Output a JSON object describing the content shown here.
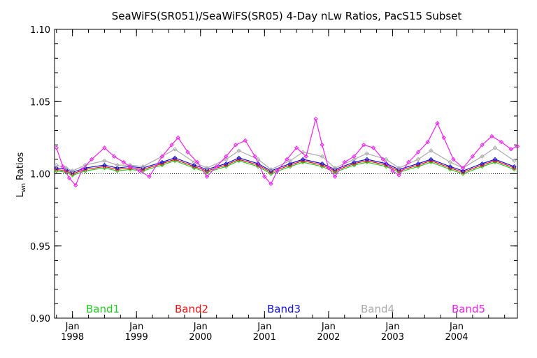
{
  "chart_data": {
    "type": "line",
    "title": "SeaWiFS(SR051)/SeaWiFS(SR05) 4-Day nLw Ratios, PacS15 Subset",
    "ylabel_main": "L",
    "ylabel_sub": "wn",
    "ylabel_rest": " Ratios",
    "xlabel": "",
    "ylim": [
      0.9,
      1.1
    ],
    "xlim": [
      1997.72,
      2004.95
    ],
    "y_ticks": [
      "0.90",
      "0.95",
      "1.00",
      "1.05",
      "1.10"
    ],
    "y_tick_values": [
      0.9,
      0.95,
      1.0,
      1.05,
      1.1
    ],
    "x_ticks": [
      {
        "month": "Jan",
        "year": "1998",
        "value": 1998.0
      },
      {
        "month": "Jan",
        "year": "1999",
        "value": 1999.0
      },
      {
        "month": "Jan",
        "year": "2000",
        "value": 2000.0
      },
      {
        "month": "Jan",
        "year": "2001",
        "value": 2001.0
      },
      {
        "month": "Jan",
        "year": "2002",
        "value": 2002.0
      },
      {
        "month": "Jan",
        "year": "2003",
        "value": 2003.0
      },
      {
        "month": "Jan",
        "year": "2004",
        "value": 2004.0
      }
    ],
    "reference_line": 1.0,
    "series": [
      {
        "name": "Band1",
        "color": "#22cc22",
        "x": [
          1997.75,
          1997.9,
          1998.0,
          1998.2,
          1998.5,
          1998.7,
          1998.9,
          1999.1,
          1999.4,
          1999.6,
          1999.9,
          2000.1,
          2000.4,
          2000.6,
          2000.9,
          2001.1,
          2001.4,
          2001.6,
          2001.9,
          2002.1,
          2002.4,
          2002.6,
          2002.9,
          2003.1,
          2003.4,
          2003.6,
          2003.9,
          2004.1,
          2004.4,
          2004.6,
          2004.9
        ],
        "values": [
          1.002,
          1.001,
          0.999,
          1.002,
          1.004,
          1.002,
          1.003,
          1.002,
          1.006,
          1.009,
          1.004,
          1.001,
          1.005,
          1.009,
          1.005,
          1.0,
          1.005,
          1.008,
          1.005,
          1.001,
          1.006,
          1.008,
          1.005,
          1.001,
          1.005,
          1.008,
          1.003,
          1.0,
          1.005,
          1.008,
          1.003
        ]
      },
      {
        "name": "Band2",
        "color": "#ee1111",
        "x": [
          1997.75,
          1997.9,
          1998.0,
          1998.2,
          1998.5,
          1998.7,
          1998.9,
          1999.1,
          1999.4,
          1999.6,
          1999.9,
          2000.1,
          2000.4,
          2000.6,
          2000.9,
          2001.1,
          2001.4,
          2001.6,
          2001.9,
          2002.1,
          2002.4,
          2002.6,
          2002.9,
          2003.1,
          2003.4,
          2003.6,
          2003.9,
          2004.1,
          2004.4,
          2004.6,
          2004.9
        ],
        "values": [
          1.003,
          1.002,
          1.0,
          1.003,
          1.005,
          1.003,
          1.004,
          1.003,
          1.007,
          1.01,
          1.005,
          1.002,
          1.006,
          1.01,
          1.006,
          1.001,
          1.006,
          1.009,
          1.006,
          1.002,
          1.007,
          1.009,
          1.006,
          1.002,
          1.006,
          1.009,
          1.004,
          1.001,
          1.006,
          1.009,
          1.004
        ]
      },
      {
        "name": "Band3",
        "color": "#1111dd",
        "x": [
          1997.75,
          1997.9,
          1998.0,
          1998.2,
          1998.5,
          1998.7,
          1998.9,
          1999.1,
          1999.4,
          1999.6,
          1999.9,
          2000.1,
          2000.4,
          2000.6,
          2000.9,
          2001.1,
          2001.4,
          2001.6,
          2001.9,
          2002.1,
          2002.4,
          2002.6,
          2002.9,
          2003.1,
          2003.4,
          2003.6,
          2003.9,
          2004.1,
          2004.4,
          2004.6,
          2004.9
        ],
        "values": [
          1.004,
          1.003,
          1.001,
          1.004,
          1.006,
          1.004,
          1.005,
          1.004,
          1.008,
          1.011,
          1.006,
          1.003,
          1.007,
          1.011,
          1.007,
          1.002,
          1.007,
          1.01,
          1.007,
          1.003,
          1.008,
          1.01,
          1.007,
          1.003,
          1.007,
          1.01,
          1.005,
          1.002,
          1.007,
          1.01,
          1.005
        ]
      },
      {
        "name": "Band4",
        "color": "#aaaaaa",
        "x": [
          1997.75,
          1997.9,
          1998.0,
          1998.2,
          1998.5,
          1998.7,
          1998.9,
          1999.1,
          1999.4,
          1999.6,
          1999.9,
          2000.1,
          2000.4,
          2000.6,
          2000.9,
          2001.1,
          2001.4,
          2001.6,
          2001.9,
          2002.1,
          2002.4,
          2002.6,
          2002.9,
          2003.1,
          2003.4,
          2003.6,
          2003.9,
          2004.1,
          2004.4,
          2004.6,
          2004.9
        ],
        "values": [
          1.006,
          1.004,
          1.002,
          1.006,
          1.009,
          1.006,
          1.006,
          1.005,
          1.012,
          1.017,
          1.008,
          1.004,
          1.01,
          1.016,
          1.01,
          1.003,
          1.009,
          1.015,
          1.012,
          1.004,
          1.01,
          1.014,
          1.01,
          1.004,
          1.01,
          1.016,
          1.008,
          1.004,
          1.012,
          1.018,
          1.009
        ]
      },
      {
        "name": "Band5",
        "color": "#ee22ee",
        "x": [
          1997.75,
          1997.85,
          1997.95,
          1998.05,
          1998.15,
          1998.3,
          1998.5,
          1998.65,
          1998.8,
          1998.9,
          1999.05,
          1999.2,
          1999.4,
          1999.55,
          1999.65,
          1999.8,
          1999.95,
          2000.1,
          2000.25,
          2000.4,
          2000.55,
          2000.7,
          2000.85,
          2001.0,
          2001.1,
          2001.2,
          2001.35,
          2001.5,
          2001.65,
          2001.8,
          2001.9,
          2002.0,
          2002.1,
          2002.25,
          2002.4,
          2002.55,
          2002.7,
          2002.85,
          2003.0,
          2003.1,
          2003.25,
          2003.4,
          2003.55,
          2003.7,
          2003.8,
          2003.95,
          2004.1,
          2004.25,
          2004.4,
          2004.55,
          2004.7,
          2004.85,
          2004.95
        ],
        "values": [
          1.018,
          1.005,
          0.997,
          0.992,
          1.003,
          1.01,
          1.018,
          1.012,
          1.008,
          1.005,
          1.002,
          0.998,
          1.012,
          1.02,
          1.025,
          1.015,
          1.008,
          0.998,
          1.005,
          1.012,
          1.02,
          1.023,
          1.012,
          0.998,
          0.993,
          1.002,
          1.01,
          1.018,
          1.012,
          1.038,
          1.02,
          1.004,
          0.998,
          1.008,
          1.012,
          1.02,
          1.018,
          1.01,
          1.002,
          0.999,
          1.008,
          1.015,
          1.022,
          1.035,
          1.025,
          1.01,
          1.004,
          1.012,
          1.02,
          1.026,
          1.022,
          1.017,
          1.019
        ]
      }
    ]
  }
}
